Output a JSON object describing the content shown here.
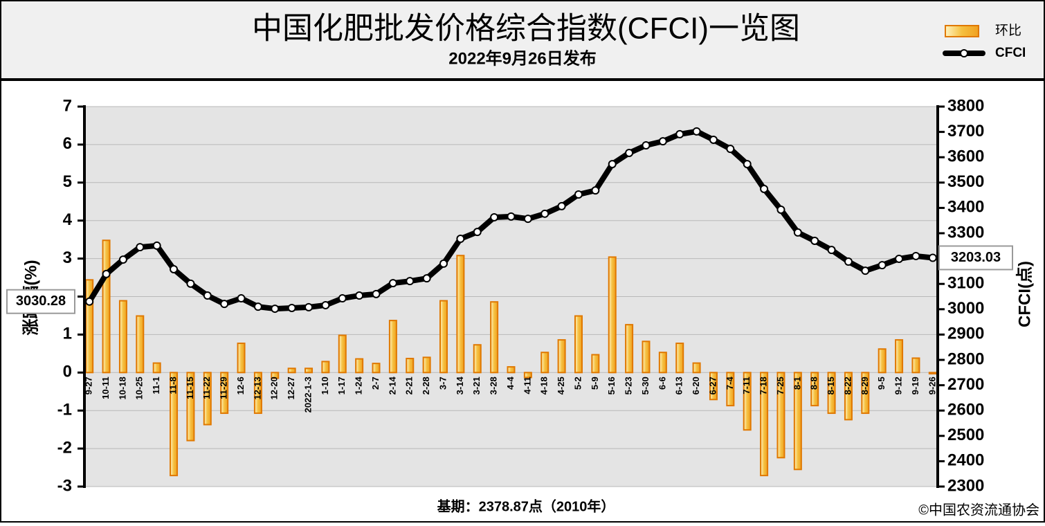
{
  "chart_data": {
    "type": "bar",
    "title": "中国化肥批发价格综合指数(CFCI)一览图",
    "subtitle": "2022年9月26日发布",
    "y_label": "涨跌幅(%)",
    "y2_label": "CFCI(点)",
    "annotations": [
      "基期：2378.87点（2010年）",
      "©中国农资流通协会"
    ],
    "categories": [
      "9-27",
      "10-11",
      "10-18",
      "10-25",
      "11-1",
      "11-8",
      "11-15",
      "11-22",
      "11-29",
      "12-6",
      "12-13",
      "12-20",
      "12-27",
      "2022-1-3",
      "1-10",
      "1-17",
      "1-24",
      "2-7",
      "2-14",
      "2-21",
      "2-28",
      "3-7",
      "3-14",
      "3-21",
      "3-28",
      "4-4",
      "4-11",
      "4-18",
      "4-25",
      "5-2",
      "5-9",
      "5-16",
      "5-23",
      "5-30",
      "6-6",
      "6-13",
      "6-20",
      "6-27",
      "7-4",
      "7-11",
      "7-18",
      "7-25",
      "8-1",
      "8-8",
      "8-15",
      "8-22",
      "8-29",
      "9-5",
      "9-12",
      "9-19",
      "9-26"
    ],
    "series": [
      {
        "name": "环比",
        "type": "bar",
        "color": "#f0a830",
        "border": "#e07800",
        "values": [
          2.44,
          3.48,
          1.89,
          1.49,
          0.25,
          -2.71,
          -1.79,
          -1.37,
          -1.07,
          0.77,
          -1.07,
          -0.15,
          0.11,
          0.11,
          0.29,
          0.98,
          0.36,
          0.24,
          1.37,
          0.37,
          0.4,
          1.89,
          3.08,
          0.73,
          1.86,
          0.15,
          -0.13,
          0.53,
          0.86,
          1.49,
          0.47,
          3.04,
          1.26,
          0.82,
          0.53,
          0.77,
          0.25,
          -0.71,
          -0.87,
          -1.51,
          -2.71,
          -2.24,
          -2.55,
          -0.87,
          -1.07,
          -1.24,
          -1.07,
          0.62,
          0.86,
          0.38,
          -0.03
        ]
      },
      {
        "name": "CFCI",
        "type": "line",
        "axis": "y2",
        "color": "#000000",
        "values": [
          3030.28,
          3139,
          3196,
          3245,
          3251,
          3158,
          3101,
          3054,
          3021,
          3043,
          3010,
          3002,
          3005,
          3008,
          3016,
          3043,
          3054,
          3060,
          3103,
          3111,
          3122,
          3180,
          3278,
          3305,
          3363,
          3366,
          3357,
          3377,
          3407,
          3453,
          3469,
          3573,
          3617,
          3647,
          3663,
          3691,
          3702,
          3669,
          3633,
          3573,
          3475,
          3393,
          3303,
          3270,
          3234,
          3188,
          3152,
          3174,
          3199,
          3210,
          3203.03
        ]
      }
    ],
    "ylim": [
      -3,
      7
    ],
    "yticks": [
      -3,
      -2,
      -1,
      0,
      1,
      2,
      3,
      4,
      5,
      6,
      7
    ],
    "y2lim": [
      2300,
      3800
    ],
    "y2ticks": [
      2300,
      2400,
      2500,
      2600,
      2700,
      2800,
      2900,
      3000,
      3100,
      3200,
      3300,
      3400,
      3500,
      3600,
      3700,
      3800
    ],
    "grid": true
  }
}
